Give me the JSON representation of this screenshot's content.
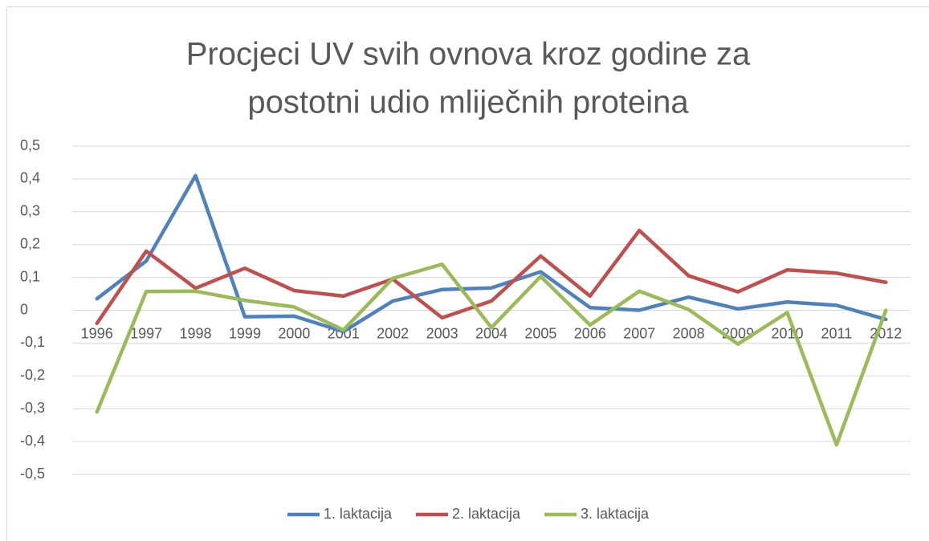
{
  "chart_data": {
    "type": "line",
    "title": [
      "Procjeci UV svih ovnova kroz godine za",
      "postotni udio mliječnih proteina"
    ],
    "categories": [
      "1996",
      "1997",
      "1998",
      "1999",
      "2000",
      "2001",
      "2002",
      "2003",
      "2004",
      "2005",
      "2006",
      "2007",
      "2008",
      "2009",
      "2010",
      "2011",
      "2012"
    ],
    "series": [
      {
        "name": "1. laktacija",
        "color": "#4f81bd",
        "values": [
          0.035,
          0.15,
          0.41,
          -0.02,
          -0.018,
          -0.065,
          0.028,
          0.063,
          0.068,
          0.117,
          0.008,
          0.0,
          0.04,
          0.004,
          0.025,
          0.015,
          -0.028
        ]
      },
      {
        "name": "2. laktacija",
        "color": "#c0504d",
        "values": [
          -0.04,
          0.18,
          0.067,
          0.128,
          0.06,
          0.043,
          0.095,
          -0.023,
          0.028,
          0.165,
          0.043,
          0.243,
          0.105,
          0.056,
          0.123,
          0.113,
          0.085
        ]
      },
      {
        "name": "3. laktacija",
        "color": "#9bbb59",
        "values": [
          -0.31,
          0.057,
          0.058,
          0.03,
          0.01,
          -0.06,
          0.097,
          0.14,
          -0.053,
          0.103,
          -0.045,
          0.058,
          0.002,
          -0.103,
          -0.007,
          -0.41,
          0.0
        ]
      }
    ],
    "ylim": [
      -0.5,
      0.5
    ],
    "yticks": [
      {
        "value": 0.5,
        "label": "0,5"
      },
      {
        "value": 0.4,
        "label": "0,4"
      },
      {
        "value": 0.3,
        "label": "0,3"
      },
      {
        "value": 0.2,
        "label": "0,2"
      },
      {
        "value": 0.1,
        "label": "0,1"
      },
      0,
      {
        "value": -0.1,
        "label": "-0,1"
      },
      {
        "value": -0.2,
        "label": "-0,2"
      },
      {
        "value": -0.3,
        "label": "-0,3"
      },
      {
        "value": -0.4,
        "label": "-0,4"
      },
      {
        "value": -0.5,
        "label": "-0,5"
      }
    ],
    "grid": true,
    "legend": "bottom"
  }
}
